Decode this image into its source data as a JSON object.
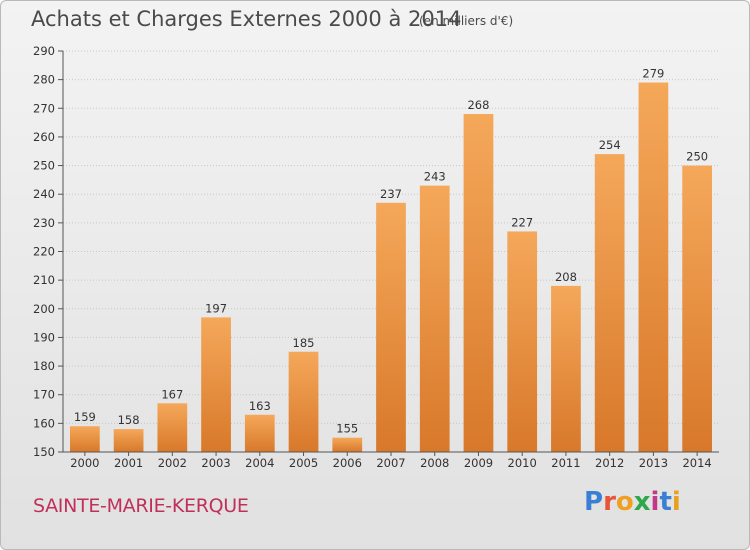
{
  "header": {
    "title": "Achats et Charges Externes 2000 à 2014",
    "subtitle": "(en milliers d'€)"
  },
  "footer": {
    "city": "SAINTE-MARIE-KERQUE",
    "logo_letters": [
      "P",
      "r",
      "o",
      "x",
      "i",
      "t",
      "i"
    ],
    "logo_colors": [
      "#3a7fd5",
      "#e8543a",
      "#f0a020",
      "#2ea84a",
      "#c03a8a",
      "#3a7fd5",
      "#e8a020"
    ]
  },
  "colors": {
    "bar_light": "#f5a85a",
    "bar_dark": "#d8782a",
    "grid": "#c8c8c8",
    "title": "#4a4a4a",
    "city": "#c0305a"
  },
  "chart_data": {
    "type": "bar",
    "title": "Achats et Charges Externes 2000 à 2014",
    "subtitle": "(en milliers d'€)",
    "categories": [
      "2000",
      "2001",
      "2002",
      "2003",
      "2004",
      "2005",
      "2006",
      "2007",
      "2008",
      "2009",
      "2010",
      "2011",
      "2012",
      "2013",
      "2014"
    ],
    "values": [
      159,
      158,
      167,
      197,
      163,
      185,
      155,
      237,
      243,
      268,
      227,
      208,
      254,
      279,
      250
    ],
    "ylim": [
      150,
      290
    ],
    "yticks": [
      150,
      160,
      170,
      180,
      190,
      200,
      210,
      220,
      230,
      240,
      250,
      260,
      270,
      280,
      290
    ],
    "grid": true
  }
}
